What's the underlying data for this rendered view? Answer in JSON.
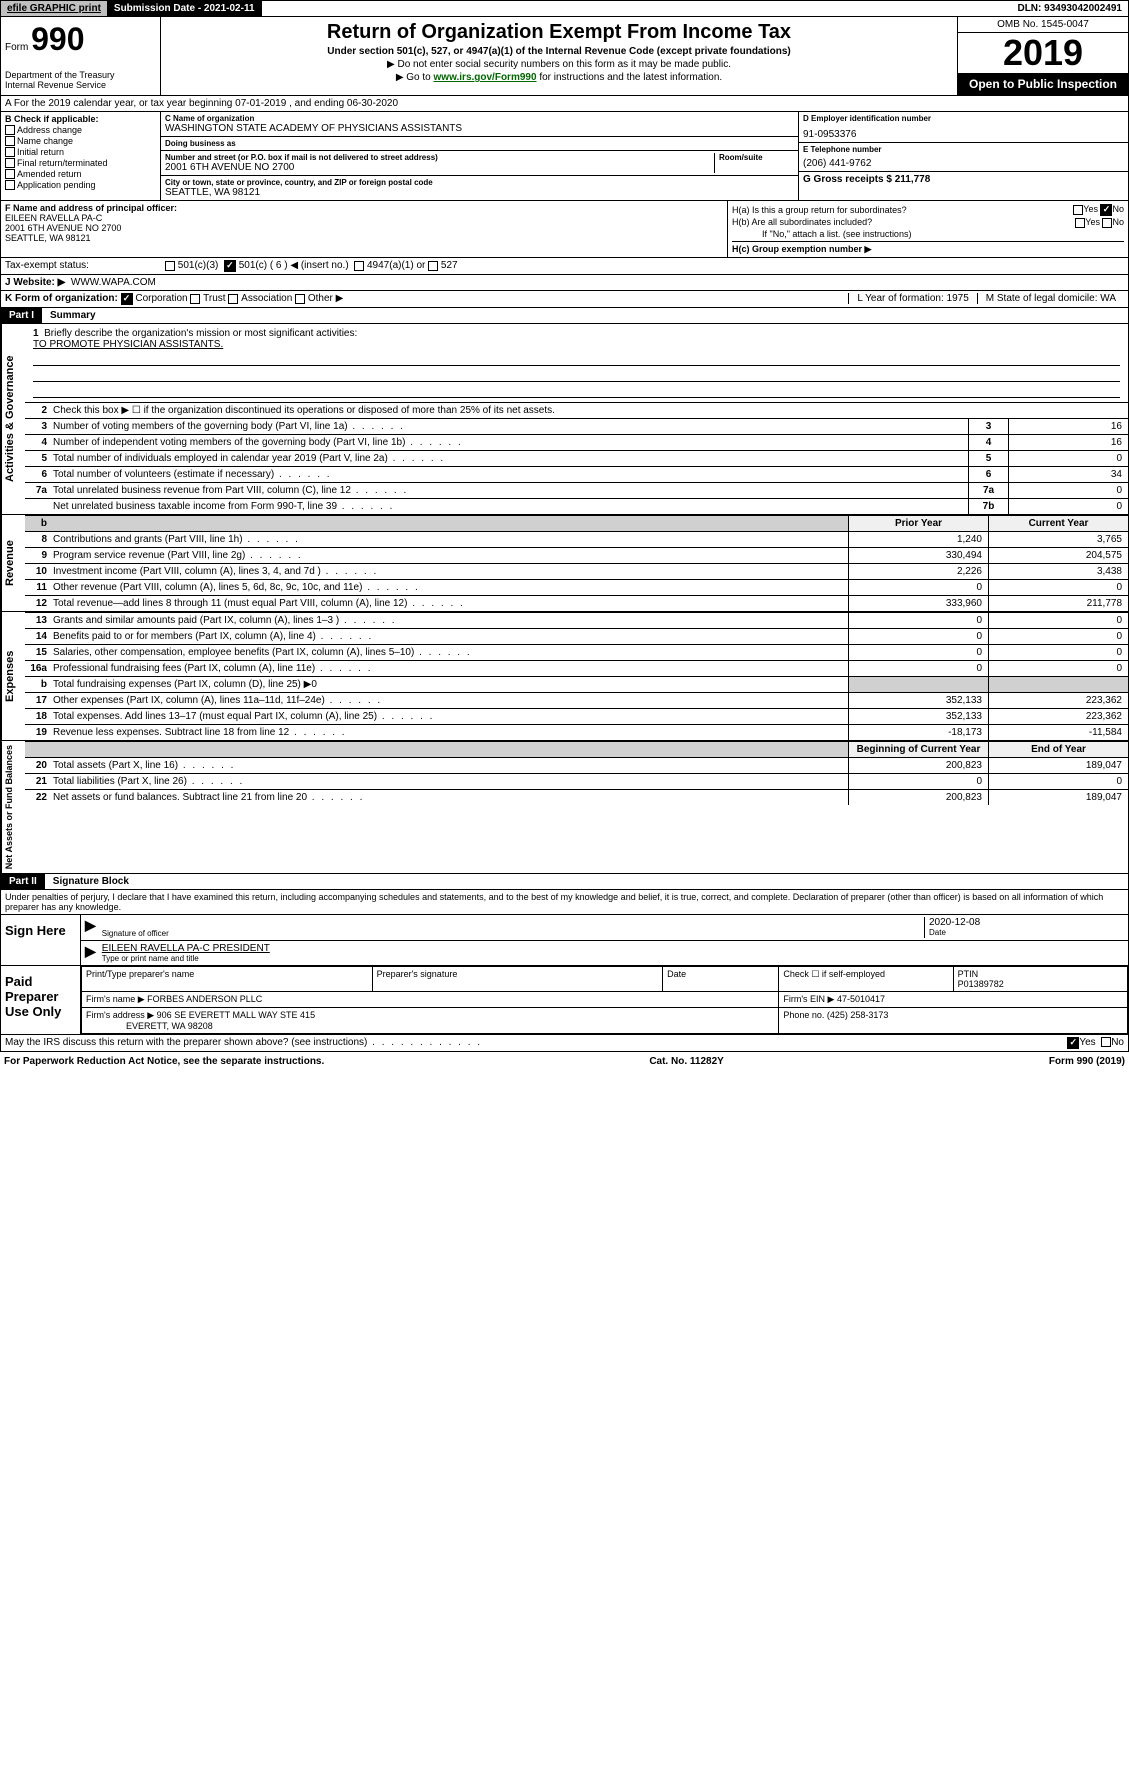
{
  "topbar": {
    "efile": "efile GRAPHIC print",
    "sub_date_label": "Submission Date - 2021-02-11",
    "dln": "DLN: 93493042002491"
  },
  "header": {
    "form_label": "Form",
    "form_num": "990",
    "dept": "Department of the Treasury\nInternal Revenue Service",
    "title": "Return of Organization Exempt From Income Tax",
    "subtitle": "Under section 501(c), 527, or 4947(a)(1) of the Internal Revenue Code (except private foundations)",
    "instr1": "▶ Do not enter social security numbers on this form as it may be made public.",
    "instr2_pre": "▶ Go to ",
    "instr2_link": "www.irs.gov/Form990",
    "instr2_post": " for instructions and the latest information.",
    "omb": "OMB No. 1545-0047",
    "year": "2019",
    "open": "Open to Public Inspection"
  },
  "section_a": "A  For the 2019 calendar year, or tax year beginning 07-01-2019     , and ending 06-30-2020",
  "col_b": {
    "label": "B Check if applicable:",
    "items": [
      "Address change",
      "Name change",
      "Initial return",
      "Final return/terminated",
      "Amended return",
      "Application pending"
    ]
  },
  "col_c": {
    "name_label": "C Name of organization",
    "name": "WASHINGTON STATE ACADEMY OF PHYSICIANS ASSISTANTS",
    "dba_label": "Doing business as",
    "dba": "",
    "addr_label": "Number and street (or P.O. box if mail is not delivered to street address)",
    "room_label": "Room/suite",
    "addr": "2001 6TH AVENUE NO 2700",
    "city_label": "City or town, state or province, country, and ZIP or foreign postal code",
    "city": "SEATTLE, WA  98121"
  },
  "col_d": {
    "label": "D Employer identification number",
    "val": "91-0953376"
  },
  "col_e": {
    "label": "E Telephone number",
    "val": "(206) 441-9762"
  },
  "col_g": {
    "label": "G Gross receipts $ 211,778"
  },
  "col_f": {
    "label": "F  Name and address of principal officer:",
    "name": "EILEEN RAVELLA PA-C",
    "addr": "2001 6TH AVENUE NO 2700",
    "city": "SEATTLE, WA  98121"
  },
  "col_h": {
    "a": "H(a)  Is this a group return for subordinates?",
    "b": "H(b)  Are all subordinates included?",
    "b_note": "If \"No,\" attach a list. (see instructions)",
    "c": "H(c)  Group exemption number ▶"
  },
  "tax_status": {
    "label": "Tax-exempt status:",
    "o1": "501(c)(3)",
    "o2": "501(c) ( 6 ) ◀ (insert no.)",
    "o3": "4947(a)(1) or",
    "o4": "527"
  },
  "website": {
    "label": "J   Website: ▶",
    "val": "WWW.WAPA.COM"
  },
  "line_k": {
    "label": "K Form of organization:",
    "o1": "Corporation",
    "o2": "Trust",
    "o3": "Association",
    "o4": "Other ▶"
  },
  "line_l": {
    "label": "L Year of formation: 1975"
  },
  "line_m": {
    "label": "M State of legal domicile: WA"
  },
  "part1": {
    "label": "Part I",
    "title": "Summary",
    "q1": "Briefly describe the organization's mission or most significant activities:",
    "mission": "TO PROMOTE PHYSICIAN ASSISTANTS.",
    "q2": "Check this box ▶ ☐  if the organization discontinued its operations or disposed of more than 25% of its net assets.",
    "rows": [
      {
        "n": "3",
        "d": "Number of voting members of the governing body (Part VI, line 1a)",
        "c": "3",
        "v": "16"
      },
      {
        "n": "4",
        "d": "Number of independent voting members of the governing body (Part VI, line 1b)",
        "c": "4",
        "v": "16"
      },
      {
        "n": "5",
        "d": "Total number of individuals employed in calendar year 2019 (Part V, line 2a)",
        "c": "5",
        "v": "0"
      },
      {
        "n": "6",
        "d": "Total number of volunteers (estimate if necessary)",
        "c": "6",
        "v": "34"
      },
      {
        "n": "7a",
        "d": "Total unrelated business revenue from Part VIII, column (C), line 12",
        "c": "7a",
        "v": "0"
      },
      {
        "n": "",
        "d": "Net unrelated business taxable income from Form 990-T, line 39",
        "c": "7b",
        "v": "0"
      }
    ],
    "fin_head": {
      "prior": "Prior Year",
      "curr": "Current Year"
    },
    "revenue": [
      {
        "n": "8",
        "d": "Contributions and grants (Part VIII, line 1h)",
        "p": "1,240",
        "c": "3,765"
      },
      {
        "n": "9",
        "d": "Program service revenue (Part VIII, line 2g)",
        "p": "330,494",
        "c": "204,575"
      },
      {
        "n": "10",
        "d": "Investment income (Part VIII, column (A), lines 3, 4, and 7d )",
        "p": "2,226",
        "c": "3,438"
      },
      {
        "n": "11",
        "d": "Other revenue (Part VIII, column (A), lines 5, 6d, 8c, 9c, 10c, and 11e)",
        "p": "0",
        "c": "0"
      },
      {
        "n": "12",
        "d": "Total revenue—add lines 8 through 11 (must equal Part VIII, column (A), line 12)",
        "p": "333,960",
        "c": "211,778"
      }
    ],
    "expenses": [
      {
        "n": "13",
        "d": "Grants and similar amounts paid (Part IX, column (A), lines 1–3 )",
        "p": "0",
        "c": "0"
      },
      {
        "n": "14",
        "d": "Benefits paid to or for members (Part IX, column (A), line 4)",
        "p": "0",
        "c": "0"
      },
      {
        "n": "15",
        "d": "Salaries, other compensation, employee benefits (Part IX, column (A), lines 5–10)",
        "p": "0",
        "c": "0"
      },
      {
        "n": "16a",
        "d": "Professional fundraising fees (Part IX, column (A), line 11e)",
        "p": "0",
        "c": "0"
      },
      {
        "n": "b",
        "d": "Total fundraising expenses (Part IX, column (D), line 25) ▶0",
        "p": "",
        "c": "",
        "shaded": true
      },
      {
        "n": "17",
        "d": "Other expenses (Part IX, column (A), lines 11a–11d, 11f–24e)",
        "p": "352,133",
        "c": "223,362"
      },
      {
        "n": "18",
        "d": "Total expenses. Add lines 13–17 (must equal Part IX, column (A), line 25)",
        "p": "352,133",
        "c": "223,362"
      },
      {
        "n": "19",
        "d": "Revenue less expenses. Subtract line 18 from line 12",
        "p": "-18,173",
        "c": "-11,584"
      }
    ],
    "net_head": {
      "prior": "Beginning of Current Year",
      "curr": "End of Year"
    },
    "net": [
      {
        "n": "20",
        "d": "Total assets (Part X, line 16)",
        "p": "200,823",
        "c": "189,047"
      },
      {
        "n": "21",
        "d": "Total liabilities (Part X, line 26)",
        "p": "0",
        "c": "0"
      },
      {
        "n": "22",
        "d": "Net assets or fund balances. Subtract line 21 from line 20",
        "p": "200,823",
        "c": "189,047"
      }
    ],
    "vert_ag": "Activities & Governance",
    "vert_rev": "Revenue",
    "vert_exp": "Expenses",
    "vert_net": "Net Assets or Fund Balances"
  },
  "part2": {
    "label": "Part II",
    "title": "Signature Block",
    "perjury": "Under penalties of perjury, I declare that I have examined this return, including accompanying schedules and statements, and to the best of my knowledge and belief, it is true, correct, and complete. Declaration of preparer (other than officer) is based on all information of which preparer has any knowledge.",
    "sign_here": "Sign Here",
    "sig_officer": "Signature of officer",
    "date": "2020-12-08",
    "date_label": "Date",
    "officer_name": "EILEEN RAVELLA PA-C  PRESIDENT",
    "type_name": "Type or print name and title",
    "paid": "Paid Preparer Use Only",
    "prep_name_label": "Print/Type preparer's name",
    "prep_sig_label": "Preparer's signature",
    "prep_date_label": "Date",
    "check_self": "Check ☐ if self-employed",
    "ptin_label": "PTIN",
    "ptin": "P01389782",
    "firm_name_label": "Firm's name      ▶",
    "firm_name": "FORBES ANDERSON PLLC",
    "firm_ein_label": "Firm's EIN ▶ 47-5010417",
    "firm_addr_label": "Firm's address ▶",
    "firm_addr": "906 SE EVERETT MALL WAY STE 415",
    "firm_city": "EVERETT, WA  98208",
    "phone_label": "Phone no. (425) 258-3173",
    "discuss": "May the IRS discuss this return with the preparer shown above? (see instructions)"
  },
  "footer": {
    "paperwork": "For Paperwork Reduction Act Notice, see the separate instructions.",
    "cat": "Cat. No. 11282Y",
    "form": "Form 990 (2019)"
  }
}
